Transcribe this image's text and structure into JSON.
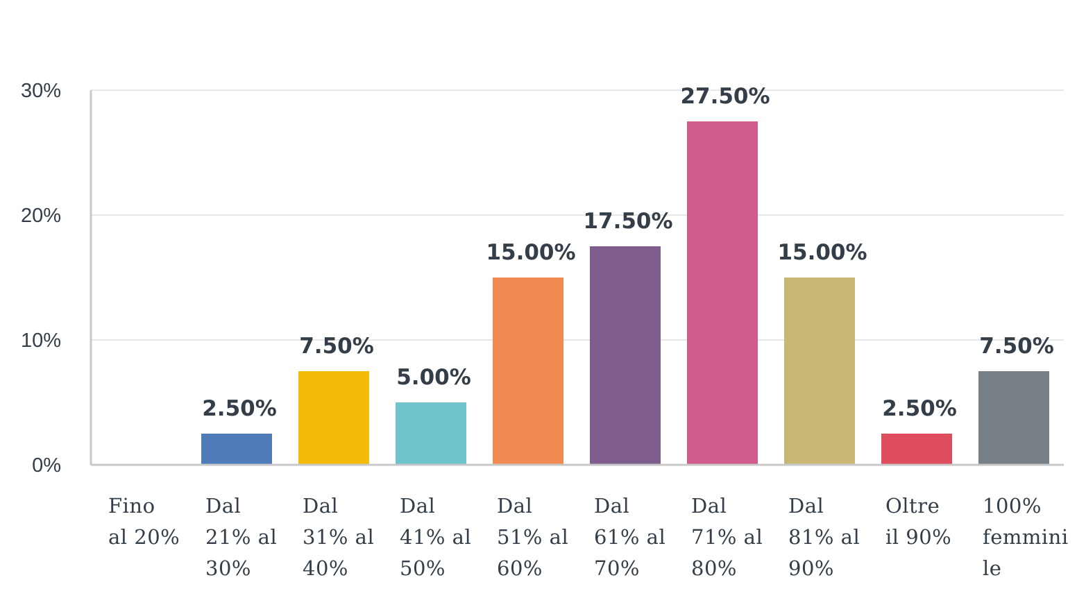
{
  "chart_data": {
    "type": "bar",
    "categories": [
      [
        "Fino",
        "al 20%"
      ],
      [
        "Dal",
        "21% al",
        "30%"
      ],
      [
        "Dal",
        "31% al",
        "40%"
      ],
      [
        "Dal",
        "41% al",
        "50%"
      ],
      [
        "Dal",
        "51% al",
        "60%"
      ],
      [
        "Dal",
        "61% al",
        "70%"
      ],
      [
        "Dal",
        "71% al",
        "80%"
      ],
      [
        "Dal",
        "81% al",
        "90%"
      ],
      [
        "Oltre",
        "il 90%"
      ],
      [
        "100%",
        "femmini",
        "le"
      ]
    ],
    "values": [
      0,
      2.5,
      7.5,
      5.0,
      15.0,
      17.5,
      27.5,
      15.0,
      2.5,
      7.5
    ],
    "data_labels": [
      "",
      "2.50%",
      "7.50%",
      "5.00%",
      "15.00%",
      "17.50%",
      "27.50%",
      "15.00%",
      "2.50%",
      "7.50%"
    ],
    "colors": [
      "#4f7bb8",
      "#4f7bb8",
      "#f5bb0a",
      "#70c3ca",
      "#f08a52",
      "#7f5d8d",
      "#d15b8d",
      "#c9b776",
      "#de4d5e",
      "#778087"
    ],
    "yticks": [
      "0%",
      "10%",
      "20%",
      "30%"
    ],
    "ylim": [
      0,
      30
    ],
    "grid": true,
    "legend": "none"
  }
}
